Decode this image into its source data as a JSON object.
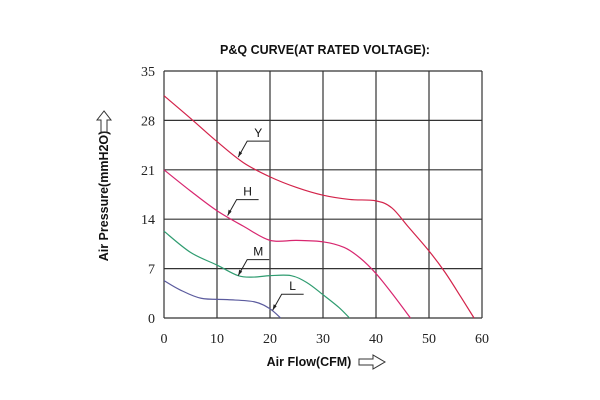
{
  "chart_data": {
    "type": "line",
    "title": "P&Q CURVE(AT RATED VOLTAGE):",
    "xlabel": "Air Flow(CFM)",
    "ylabel": "Air Pressure(mmH2O)",
    "xlim": [
      0,
      60
    ],
    "ylim": [
      0,
      35
    ],
    "xticks": [
      0,
      10,
      20,
      30,
      40,
      50,
      60
    ],
    "yticks": [
      0,
      7,
      14,
      21,
      28,
      35
    ],
    "grid": true,
    "series": [
      {
        "name": "Y",
        "color": "#d3234a",
        "x": [
          0,
          5,
          10,
          15,
          20,
          25,
          30,
          35,
          40,
          43,
          46,
          50,
          53,
          56,
          58.5
        ],
        "y": [
          31.5,
          28.3,
          25,
          22,
          20,
          18.5,
          17.4,
          16.8,
          16.6,
          15.6,
          13,
          9.5,
          6.5,
          3,
          0
        ],
        "label_at": [
          14,
          22.8
        ]
      },
      {
        "name": "H",
        "color": "#d8266f",
        "x": [
          0,
          5,
          10,
          15,
          20,
          25,
          30,
          34,
          37,
          40,
          43,
          46.5
        ],
        "y": [
          21,
          18,
          15.2,
          13,
          11,
          11,
          10.8,
          10,
          8.5,
          6.3,
          3.5,
          0
        ],
        "label_at": [
          12,
          14.5
        ]
      },
      {
        "name": "M",
        "color": "#2f9c70",
        "x": [
          0,
          5,
          10,
          14,
          17,
          20,
          24,
          27,
          30,
          33,
          35
        ],
        "y": [
          12.3,
          9.3,
          7.5,
          6,
          5.8,
          6,
          6,
          5,
          3.3,
          1.5,
          0
        ],
        "label_at": [
          14,
          6
        ]
      },
      {
        "name": "L",
        "color": "#5b5b9e",
        "x": [
          0,
          3,
          7,
          12,
          17,
          20,
          22
        ],
        "y": [
          5.3,
          4,
          2.8,
          2.6,
          2.3,
          1.3,
          0
        ],
        "label_at": [
          20.5,
          1.1
        ]
      }
    ]
  }
}
